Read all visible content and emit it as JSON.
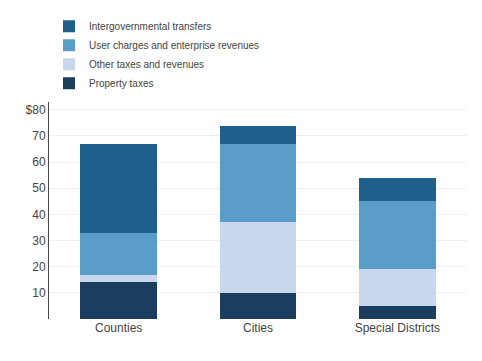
{
  "chart_data": {
    "type": "bar",
    "stacked": true,
    "categories": [
      "Counties",
      "Cities",
      "Special Districts"
    ],
    "series": [
      {
        "name": "Property taxes",
        "color": "#1b3d5e",
        "values": [
          14,
          10,
          5
        ]
      },
      {
        "name": "Other taxes and revenues",
        "color": "#c8d8ec",
        "values": [
          3,
          27,
          14
        ]
      },
      {
        "name": "User charges and enterprise revenues",
        "color": "#5b9dc9",
        "values": [
          16,
          30,
          26
        ]
      },
      {
        "name": "Intergovernmental transfers",
        "color": "#1f5f8b",
        "values": [
          34,
          7,
          9
        ]
      }
    ],
    "ylim": [
      0,
      83
    ],
    "yticks": [
      {
        "value": 0,
        "label": ""
      },
      10,
      20,
      30,
      40,
      50,
      60,
      70,
      {
        "value": 80,
        "label": "$80"
      }
    ],
    "grid": true,
    "legend": "top"
  }
}
